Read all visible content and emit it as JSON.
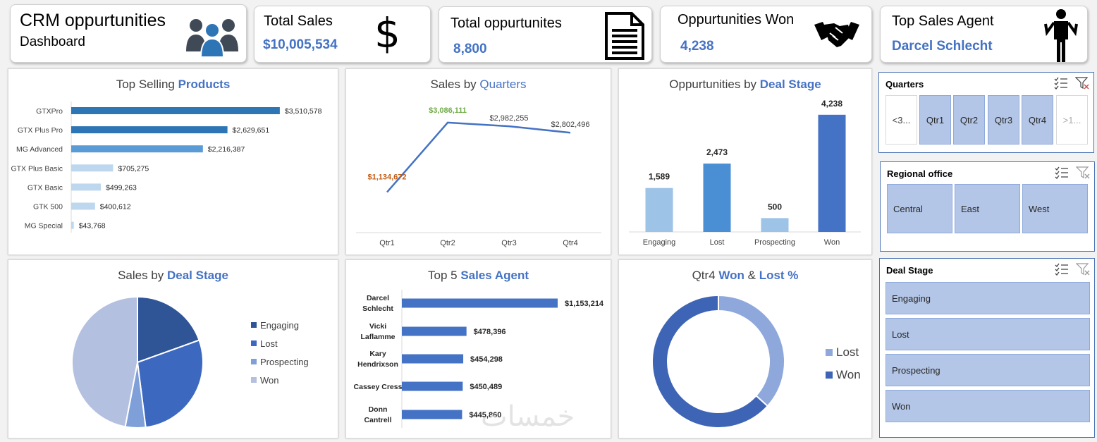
{
  "header": {
    "title": "CRM oppurtunities",
    "subtitle": "Dashboard"
  },
  "kpis": {
    "total_sales": {
      "label": "Total Sales",
      "value": "$10,005,534"
    },
    "total_opps": {
      "label": "Total oppurtunites",
      "value": "8,800"
    },
    "opps_won": {
      "label": "Oppurtunities Won",
      "value": "4,238"
    },
    "top_agent": {
      "label": "Top Sales Agent",
      "value": "Darcel Schlecht"
    }
  },
  "panels": {
    "products": {
      "title_a": "Top Selling ",
      "title_b": "Products"
    },
    "quarters": {
      "title_a": "Sales by ",
      "title_b": "Quarters"
    },
    "deal_opps": {
      "title_a": "Oppurtunities by ",
      "title_b": "Deal Stage"
    },
    "deal_sales": {
      "title_a": "Sales by ",
      "title_b": "Deal Stage"
    },
    "agents": {
      "title_a": "Top 5 ",
      "title_b": "Sales Agent"
    },
    "won_lost": {
      "title_a": "Qtr4 ",
      "title_b": "Won",
      "title_c": " & ",
      "title_d": "Lost %"
    }
  },
  "chart_data": [
    {
      "id": "products",
      "type": "bar",
      "orientation": "horizontal",
      "title": "Top Selling Products",
      "categories": [
        "GTXPro",
        "GTX Plus Pro",
        "MG Advanced",
        "GTX Plus Basic",
        "GTX Basic",
        "GTK 500",
        "MG Special"
      ],
      "values": [
        3510578,
        2629651,
        2216387,
        705275,
        499263,
        400612,
        43768
      ],
      "labels": [
        "$3,510,578",
        "$2,629,651",
        "$2,216,387",
        "$705,275",
        "$499,263",
        "$400,612",
        "$43,768"
      ],
      "colors": [
        "#2e75b6",
        "#2e75b6",
        "#5b9bd5",
        "#bdd7ee",
        "#bdd7ee",
        "#bdd7ee",
        "#bdd7ee"
      ],
      "xlim": [
        0,
        3700000
      ]
    },
    {
      "id": "quarters",
      "type": "line",
      "title": "Sales by Quarters",
      "categories": [
        "Qtr1",
        "Qtr2",
        "Qtr3",
        "Qtr4"
      ],
      "values": [
        1134672,
        3086111,
        2982255,
        2802496
      ],
      "labels": [
        "$1,134,672",
        "$3,086,111",
        "$2,982,255",
        "$2,802,496"
      ],
      "ylim": [
        0,
        3400000
      ],
      "line_color": "#4472c4"
    },
    {
      "id": "deal_opps",
      "type": "bar",
      "title": "Oppurtunities by Deal Stage",
      "categories": [
        "Engaging",
        "Lost",
        "Prospecting",
        "Won"
      ],
      "values": [
        1589,
        2473,
        500,
        4238
      ],
      "labels": [
        "1,589",
        "2,473",
        "500",
        "4,238"
      ],
      "colors": [
        "#9dc3e6",
        "#4a8fd4",
        "#9dc3e6",
        "#4472c4"
      ],
      "ylim": [
        0,
        4500
      ]
    },
    {
      "id": "deal_sales",
      "type": "pie",
      "title": "Sales by Deal Stage",
      "categories": [
        "Engaging",
        "Lost",
        "Prospecting",
        "Won"
      ],
      "values": [
        19.5,
        28.5,
        5.0,
        47.0
      ],
      "colors": [
        "#2f5597",
        "#3c69bf",
        "#7f9fd8",
        "#b4c0e0"
      ]
    },
    {
      "id": "agents",
      "type": "bar",
      "orientation": "horizontal",
      "title": "Top 5 Sales Agent",
      "categories": [
        [
          "Darcel",
          "Schlecht"
        ],
        [
          "Vicki",
          "Laflamme"
        ],
        [
          "Kary",
          "Hendrixson"
        ],
        [
          "Cassey Cress"
        ],
        [
          "Donn",
          "Cantrell"
        ]
      ],
      "values": [
        1153214,
        478396,
        454298,
        450489,
        445860
      ],
      "labels": [
        "$1,153,214",
        "$478,396",
        "$454,298",
        "$450,489",
        "$445,860"
      ],
      "color": "#4472c4",
      "xlim": [
        0,
        1300000
      ]
    },
    {
      "id": "won_lost",
      "type": "pie",
      "subtype": "donut",
      "title": "Qtr4 Won & Lost %",
      "categories": [
        "Lost",
        "Won"
      ],
      "values": [
        36.7,
        63.3
      ],
      "colors": [
        "#8fa8dc",
        "#3e64b5"
      ]
    }
  ],
  "slicers": {
    "quarters": {
      "title": "Quarters",
      "items": [
        "<3...",
        "Qtr1",
        "Qtr2",
        "Qtr3",
        "Qtr4",
        ">1..."
      ]
    },
    "regional": {
      "title": "Regional office",
      "items": [
        "Central",
        "East",
        "West"
      ]
    },
    "deal_stage": {
      "title": "Deal Stage",
      "items": [
        "Engaging",
        "Lost",
        "Prospecting",
        "Won"
      ]
    }
  },
  "watermark": "خمسات",
  "colors": {
    "accent": "#4472c4",
    "slicer_fill": "#b4c6e7",
    "slicer_border": "#4a73b5"
  }
}
